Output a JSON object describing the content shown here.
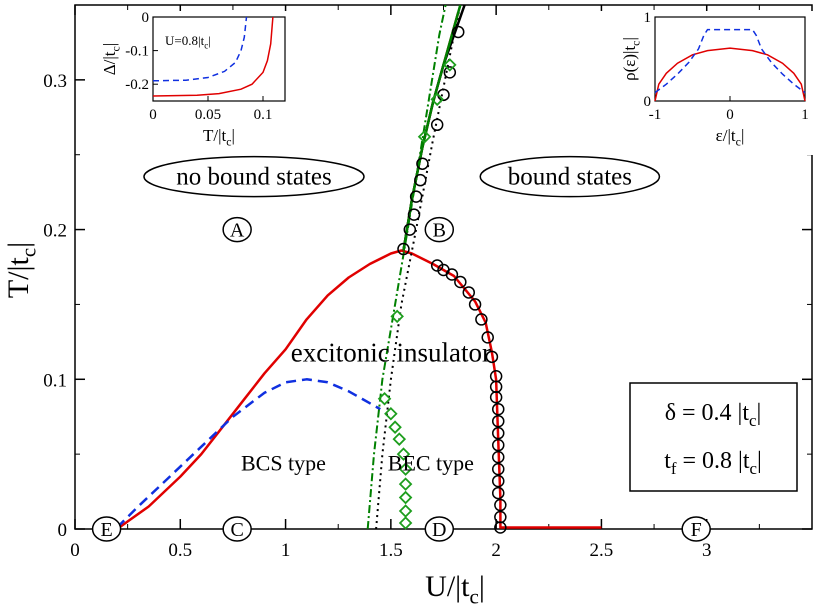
{
  "chart_data": {
    "type": "line",
    "xlabel": "U/|t_c|",
    "ylabel": "T/|t_c|",
    "xlim": [
      0,
      3.5
    ],
    "ylim": [
      0,
      0.35
    ],
    "xticks": [
      "0",
      "0.5",
      "1",
      "1.5",
      "2",
      "2.5",
      "3"
    ],
    "yticks": [
      "0",
      "0.1",
      "0.2",
      "0.3"
    ],
    "grid": false,
    "series": [
      {
        "color": "#e00000",
        "style": "solid",
        "points": [
          [
            0.2,
            0
          ],
          [
            0.25,
            0.005
          ],
          [
            0.35,
            0.015
          ],
          [
            0.5,
            0.035
          ],
          [
            0.6,
            0.05
          ],
          [
            0.7,
            0.068
          ],
          [
            0.8,
            0.086
          ],
          [
            0.9,
            0.104
          ],
          [
            1.0,
            0.12
          ],
          [
            1.1,
            0.14
          ],
          [
            1.2,
            0.156
          ],
          [
            1.3,
            0.168
          ],
          [
            1.4,
            0.177
          ],
          [
            1.5,
            0.184
          ],
          [
            1.55,
            0.186
          ],
          [
            1.6,
            0.184
          ],
          [
            1.7,
            0.177
          ],
          [
            1.8,
            0.169
          ],
          [
            1.9,
            0.152
          ],
          [
            1.95,
            0.138
          ],
          [
            1.98,
            0.118
          ],
          [
            2.0,
            0.1
          ],
          [
            2.01,
            0.06
          ],
          [
            2.02,
            0.02
          ],
          [
            2.02,
            0.001
          ],
          [
            2.5,
            0.001
          ]
        ]
      },
      {
        "color": "#e00000",
        "style": "solid",
        "points": [
          [
            1.56,
            0.186
          ],
          [
            1.6,
            0.22
          ],
          [
            1.65,
            0.255
          ],
          [
            1.7,
            0.285
          ],
          [
            1.75,
            0.31
          ],
          [
            1.82,
            0.345
          ]
        ]
      },
      {
        "color": "#1030e0",
        "style": "dashed",
        "points": [
          [
            0.2,
            0.001
          ],
          [
            0.3,
            0.015
          ],
          [
            0.45,
            0.035
          ],
          [
            0.6,
            0.055
          ],
          [
            0.75,
            0.075
          ],
          [
            0.9,
            0.091
          ],
          [
            1.0,
            0.098
          ],
          [
            1.1,
            0.1
          ],
          [
            1.2,
            0.098
          ],
          [
            1.3,
            0.092
          ],
          [
            1.4,
            0.084
          ],
          [
            1.45,
            0.08
          ]
        ]
      },
      {
        "color": "#000000",
        "style": "solid",
        "points": [
          [
            1.56,
            0.186
          ],
          [
            1.6,
            0.22
          ],
          [
            1.65,
            0.255
          ],
          [
            1.7,
            0.285
          ],
          [
            1.75,
            0.31
          ],
          [
            1.85,
            0.35
          ]
        ]
      },
      {
        "color": "#000000",
        "style": "dotted",
        "points": [
          [
            1.43,
            0
          ],
          [
            1.46,
            0.05
          ],
          [
            1.5,
            0.1
          ],
          [
            1.55,
            0.15
          ],
          [
            1.62,
            0.2
          ],
          [
            1.7,
            0.26
          ],
          [
            1.8,
            0.33
          ],
          [
            1.83,
            0.35
          ]
        ]
      },
      {
        "color": "#008000",
        "style": "dashdot",
        "points": [
          [
            1.39,
            0
          ],
          [
            1.42,
            0.05
          ],
          [
            1.46,
            0.1
          ],
          [
            1.52,
            0.15
          ],
          [
            1.58,
            0.2
          ],
          [
            1.65,
            0.26
          ],
          [
            1.73,
            0.33
          ],
          [
            1.76,
            0.35
          ]
        ]
      },
      {
        "color": "#008000",
        "style": "solid",
        "points": [
          [
            1.56,
            0.186
          ],
          [
            1.6,
            0.22
          ],
          [
            1.65,
            0.255
          ],
          [
            1.7,
            0.285
          ],
          [
            1.75,
            0.31
          ],
          [
            1.83,
            0.35
          ]
        ]
      }
    ],
    "circles": [
      [
        1.56,
        0.187
      ],
      [
        1.59,
        0.2
      ],
      [
        1.61,
        0.21
      ],
      [
        1.62,
        0.222
      ],
      [
        1.64,
        0.233
      ],
      [
        1.65,
        0.244
      ],
      [
        1.72,
        0.27
      ],
      [
        1.75,
        0.29
      ],
      [
        1.78,
        0.305
      ],
      [
        1.82,
        0.332
      ],
      [
        1.72,
        0.176
      ],
      [
        1.75,
        0.173
      ],
      [
        1.79,
        0.17
      ],
      [
        1.83,
        0.165
      ],
      [
        1.87,
        0.158
      ],
      [
        1.9,
        0.15
      ],
      [
        1.93,
        0.14
      ],
      [
        1.96,
        0.128
      ],
      [
        1.98,
        0.115
      ],
      [
        2.0,
        0.102
      ],
      [
        2.0,
        0.095
      ],
      [
        2.0,
        0.088
      ],
      [
        2.01,
        0.08
      ],
      [
        2.01,
        0.072
      ],
      [
        2.01,
        0.064
      ],
      [
        2.01,
        0.056
      ],
      [
        2.01,
        0.048
      ],
      [
        2.01,
        0.04
      ],
      [
        2.01,
        0.032
      ],
      [
        2.01,
        0.024
      ],
      [
        2.02,
        0.016
      ],
      [
        2.02,
        0.008
      ],
      [
        2.02,
        0.001
      ]
    ],
    "diamonds": [
      [
        1.53,
        0.142
      ],
      [
        1.47,
        0.087
      ],
      [
        1.5,
        0.077
      ],
      [
        1.52,
        0.068
      ],
      [
        1.54,
        0.06
      ],
      [
        1.56,
        0.05
      ],
      [
        1.57,
        0.04
      ],
      [
        1.57,
        0.03
      ],
      [
        1.57,
        0.021
      ],
      [
        1.57,
        0.012
      ],
      [
        1.57,
        0.004
      ],
      [
        1.66,
        0.262
      ],
      [
        1.72,
        0.287
      ],
      [
        1.78,
        0.31
      ]
    ],
    "circled_labels": [
      {
        "text": "A",
        "x": 0.77,
        "y": 0.2
      },
      {
        "text": "B",
        "x": 1.73,
        "y": 0.2
      },
      {
        "text": "C",
        "x": 0.77,
        "y": 0
      },
      {
        "text": "D",
        "x": 1.73,
        "y": 0
      },
      {
        "text": "E",
        "x": 0.15,
        "y": 0
      },
      {
        "text": "F",
        "x": 2.95,
        "y": 0
      }
    ],
    "region_labels": [
      {
        "text": "no bound states",
        "x": 0.85,
        "y": 0.23,
        "oval": true
      },
      {
        "text": "bound states",
        "x": 2.35,
        "y": 0.23,
        "oval": true
      },
      {
        "text": "excitonic insulator",
        "x": 1.5,
        "y": 0.112,
        "oval": false
      },
      {
        "text": "BCS type",
        "x": 0.99,
        "y": 0.039,
        "oval": false
      },
      {
        "text": "BEC type",
        "x": 1.69,
        "y": 0.039,
        "oval": false
      }
    ],
    "param_box": {
      "line1": "δ = 0.4 |t_c|",
      "line2": "t_f = 0.8 |t_c|"
    },
    "insets": [
      {
        "name": "gap-inset",
        "xlabel": "T/|t_c|",
        "ylabel": "Δ/|t_c|",
        "annotation": "U=0.8|t_c|",
        "xlim": [
          0,
          0.12
        ],
        "ylim": [
          -0.25,
          0
        ],
        "xticks": [
          "0",
          "0.05",
          "0.1"
        ],
        "yticks": [
          "0",
          "-0.1",
          "-0.2"
        ],
        "series": [
          {
            "color": "#e00000",
            "style": "solid",
            "points": [
              [
                0,
                -0.235
              ],
              [
                0.04,
                -0.233
              ],
              [
                0.06,
                -0.228
              ],
              [
                0.08,
                -0.215
              ],
              [
                0.09,
                -0.2
              ],
              [
                0.1,
                -0.165
              ],
              [
                0.104,
                -0.13
              ],
              [
                0.107,
                -0.08
              ],
              [
                0.109,
                0
              ]
            ]
          },
          {
            "color": "#1030e0",
            "style": "dashed",
            "points": [
              [
                0,
                -0.19
              ],
              [
                0.03,
                -0.188
              ],
              [
                0.05,
                -0.18
              ],
              [
                0.065,
                -0.162
              ],
              [
                0.075,
                -0.135
              ],
              [
                0.08,
                -0.1
              ],
              [
                0.083,
                -0.06
              ],
              [
                0.085,
                0
              ]
            ]
          }
        ]
      },
      {
        "name": "dos-inset",
        "xlabel": "ε/|t_c|",
        "ylabel": "ρ(ε)|t_c|",
        "xlim": [
          -1,
          1
        ],
        "ylim": [
          0,
          1
        ],
        "xticks": [
          "-1",
          "0",
          "1"
        ],
        "yticks": [
          "0",
          "1"
        ],
        "series": [
          {
            "color": "#e00000",
            "style": "solid",
            "points": [
              [
                -1,
                0
              ],
              [
                -0.95,
                0.2
              ],
              [
                -0.85,
                0.33
              ],
              [
                -0.7,
                0.45
              ],
              [
                -0.5,
                0.55
              ],
              [
                -0.3,
                0.6
              ],
              [
                0,
                0.63
              ],
              [
                0.3,
                0.6
              ],
              [
                0.5,
                0.55
              ],
              [
                0.7,
                0.45
              ],
              [
                0.85,
                0.33
              ],
              [
                0.95,
                0.2
              ],
              [
                1,
                0
              ]
            ]
          },
          {
            "color": "#1030e0",
            "style": "dashed",
            "points": [
              [
                -1,
                0.1
              ],
              [
                -0.85,
                0.2
              ],
              [
                -0.7,
                0.32
              ],
              [
                -0.55,
                0.46
              ],
              [
                -0.42,
                0.62
              ],
              [
                -0.35,
                0.78
              ],
              [
                -0.3,
                0.85
              ],
              [
                0.3,
                0.85
              ],
              [
                0.35,
                0.78
              ],
              [
                0.42,
                0.62
              ],
              [
                0.55,
                0.46
              ],
              [
                0.7,
                0.32
              ],
              [
                0.85,
                0.2
              ],
              [
                1,
                0.1
              ]
            ]
          }
        ]
      }
    ]
  }
}
